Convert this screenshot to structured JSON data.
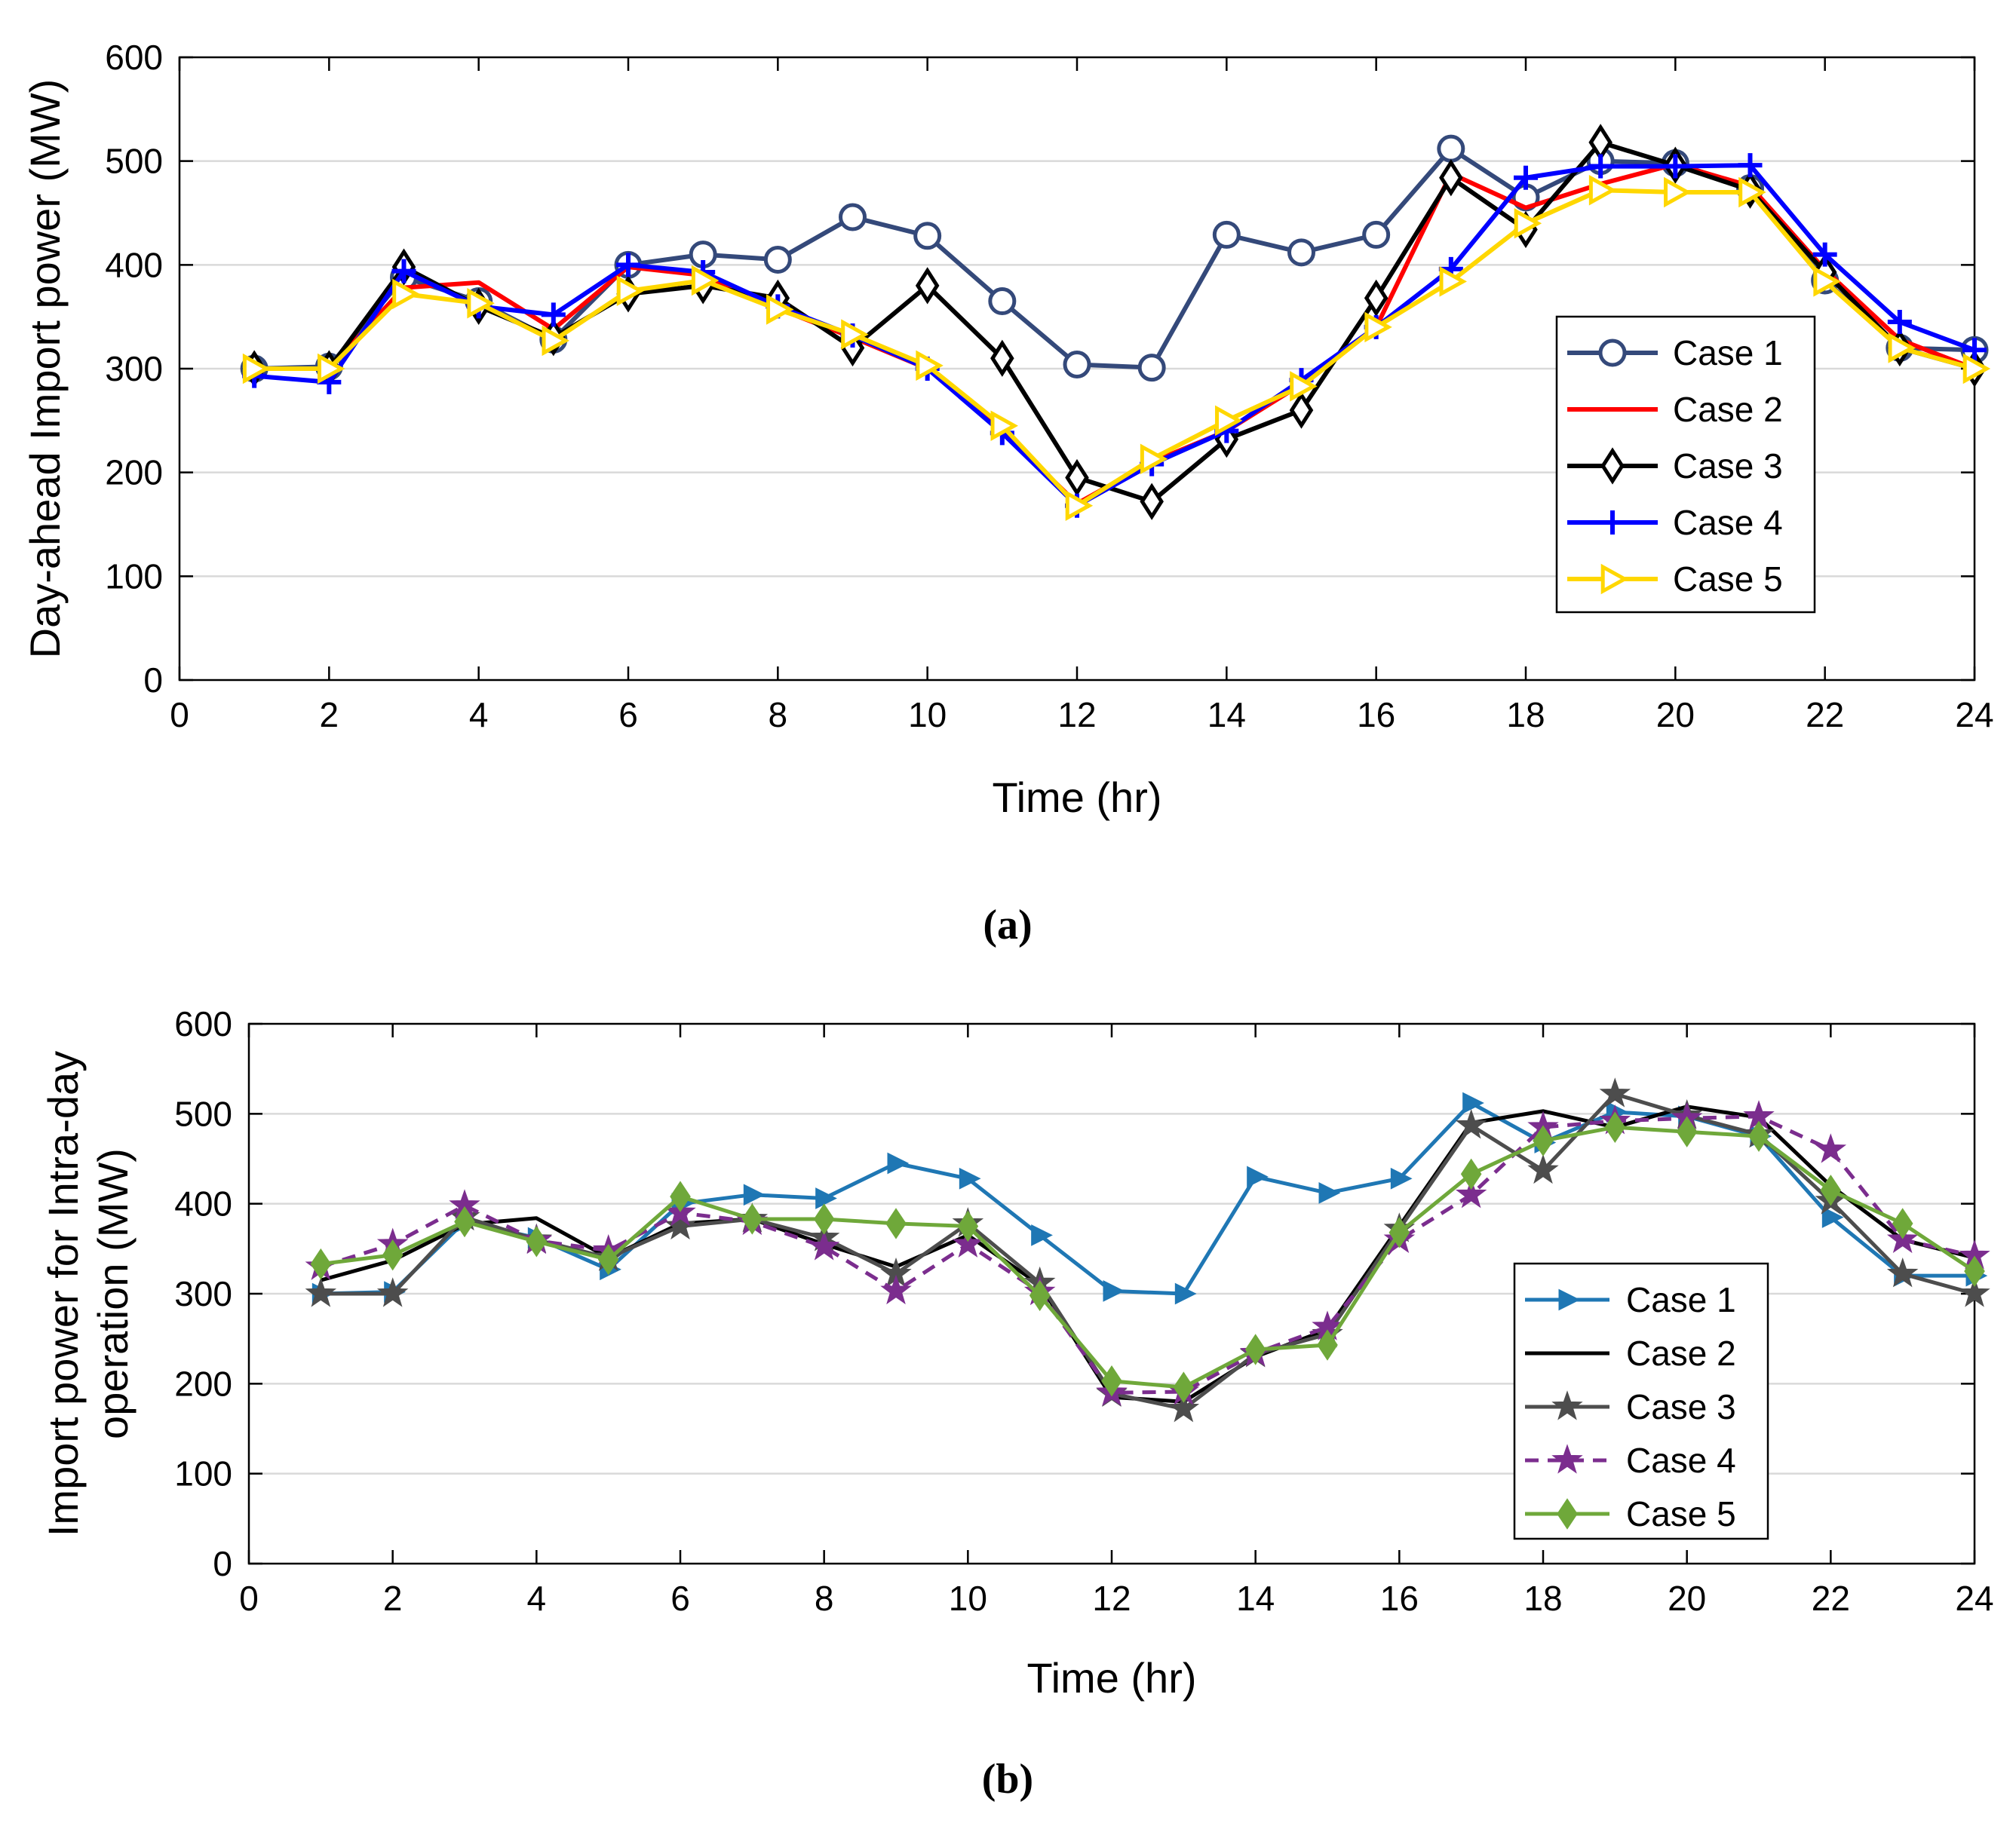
{
  "chart_data": [
    {
      "type": "line",
      "caption": "(a)",
      "xlabel": "Time (hr)",
      "ylabel": "Day-ahead Import power (MW)",
      "xlim": [
        0,
        24
      ],
      "ylim": [
        0,
        600
      ],
      "xticks": [
        0,
        2,
        4,
        6,
        8,
        10,
        12,
        14,
        16,
        18,
        20,
        22,
        24
      ],
      "yticks": [
        0,
        100,
        200,
        300,
        400,
        500,
        600
      ],
      "grid": "horizontal",
      "legend_position": "right-center",
      "x": [
        1,
        2,
        3,
        4,
        5,
        6,
        7,
        8,
        9,
        10,
        11,
        12,
        13,
        14,
        15,
        16,
        17,
        18,
        19,
        20,
        21,
        22,
        23,
        24
      ],
      "series": [
        {
          "name": "Case 1",
          "color": "#34497a",
          "marker": "circle",
          "values": [
            300,
            302,
            388,
            365,
            328,
            400,
            410,
            405,
            446,
            428,
            365,
            304,
            301,
            429,
            412,
            429,
            512,
            465,
            500,
            498,
            474,
            385,
            320,
            318
          ]
        },
        {
          "name": "Case 2",
          "color": "#ff0000",
          "marker": "none",
          "values": [
            300,
            300,
            378,
            383,
            338,
            398,
            390,
            358,
            330,
            300,
            240,
            170,
            210,
            240,
            285,
            340,
            488,
            455,
            478,
            497,
            476,
            395,
            328,
            300
          ]
        },
        {
          "name": "Case 3",
          "color": "#000000",
          "marker": "diamond",
          "values": [
            300,
            300,
            398,
            360,
            330,
            372,
            380,
            368,
            320,
            380,
            310,
            195,
            172,
            232,
            260,
            368,
            484,
            434,
            518,
            496,
            472,
            393,
            320,
            300
          ]
        },
        {
          "name": "Case 4",
          "color": "#0000ff",
          "marker": "plus",
          "values": [
            293,
            287,
            394,
            360,
            352,
            400,
            393,
            360,
            332,
            300,
            238,
            168,
            208,
            240,
            289,
            340,
            396,
            484,
            495,
            495,
            496,
            410,
            345,
            318
          ]
        },
        {
          "name": "Case 5",
          "color": "#ffd700",
          "marker": "triangle-right",
          "values": [
            300,
            300,
            372,
            363,
            327,
            375,
            385,
            357,
            333,
            303,
            245,
            168,
            213,
            250,
            283,
            340,
            384,
            440,
            472,
            470,
            470,
            384,
            320,
            300
          ]
        }
      ]
    },
    {
      "type": "line",
      "caption": "(b)",
      "xlabel": "Time (hr)",
      "ylabel_lines": [
        "Import power for Intra-day",
        "operation (MW)"
      ],
      "xlim": [
        0,
        24
      ],
      "ylim": [
        0,
        600
      ],
      "xticks": [
        0,
        2,
        4,
        6,
        8,
        10,
        12,
        14,
        16,
        18,
        20,
        22,
        24
      ],
      "yticks": [
        0,
        100,
        200,
        300,
        400,
        500,
        600
      ],
      "grid": "horizontal",
      "legend_position": "right-center",
      "x": [
        1,
        2,
        3,
        4,
        5,
        6,
        7,
        8,
        9,
        10,
        11,
        12,
        13,
        14,
        15,
        16,
        17,
        18,
        19,
        20,
        21,
        22,
        23,
        24
      ],
      "series": [
        {
          "name": "Case 1",
          "color": "#1f77b4",
          "marker": "triangle-right",
          "dashed": false,
          "values": [
            300,
            302,
            380,
            362,
            327,
            400,
            410,
            406,
            445,
            428,
            365,
            303,
            300,
            430,
            412,
            428,
            512,
            468,
            502,
            497,
            475,
            385,
            320,
            320
          ]
        },
        {
          "name": "Case 2",
          "color": "#000000",
          "marker": "none",
          "dashed": false,
          "values": [
            315,
            337,
            377,
            384,
            340,
            378,
            383,
            355,
            330,
            365,
            310,
            185,
            180,
            230,
            260,
            375,
            490,
            503,
            485,
            508,
            496,
            420,
            360,
            340
          ]
        },
        {
          "name": "Case 3",
          "color": "#4d4d4d",
          "marker": "star",
          "dashed": false,
          "values": [
            300,
            300,
            385,
            360,
            340,
            375,
            383,
            362,
            322,
            378,
            312,
            189,
            172,
            233,
            255,
            372,
            487,
            437,
            522,
            498,
            477,
            403,
            322,
            300
          ]
        },
        {
          "name": "Case 4",
          "color": "#7b2d8e",
          "marker": "star",
          "dashed": true,
          "values": [
            330,
            355,
            398,
            359,
            348,
            390,
            380,
            352,
            303,
            355,
            302,
            190,
            191,
            234,
            263,
            360,
            410,
            485,
            492,
            495,
            497,
            460,
            360,
            342
          ]
        },
        {
          "name": "Case 5",
          "color": "#6fa83a",
          "marker": "diamond",
          "dashed": false,
          "values": [
            333,
            343,
            380,
            358,
            338,
            408,
            383,
            383,
            378,
            375,
            298,
            203,
            196,
            238,
            243,
            368,
            433,
            470,
            485,
            480,
            475,
            415,
            378,
            325
          ]
        }
      ]
    }
  ]
}
